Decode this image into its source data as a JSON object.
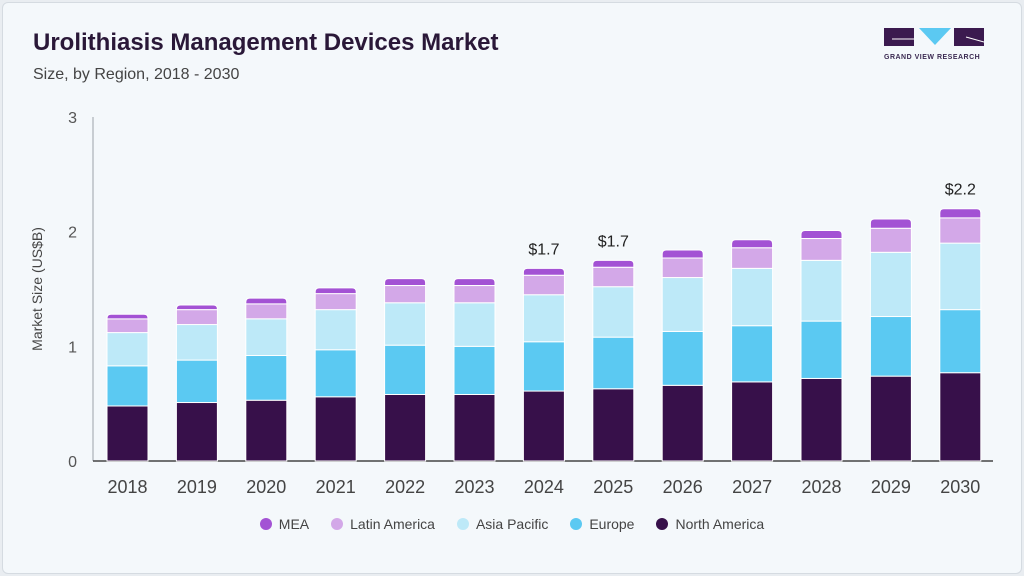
{
  "header": {
    "title": "Urolithiasis Management Devices Market",
    "subtitle": "Size, by Region, 2018 - 2030",
    "logo_text": "GRAND VIEW RESEARCH"
  },
  "chart_data": {
    "type": "bar",
    "stacked": true,
    "title": "Urolithiasis Management Devices Market",
    "subtitle": "Size, by Region, 2018 - 2030",
    "xlabel": "",
    "ylabel": "Market Size (US$B)",
    "ylim": [
      0,
      3
    ],
    "yticks": [
      "0",
      "1",
      "2",
      "3"
    ],
    "grid": false,
    "legend_position": "bottom",
    "categories": [
      "2018",
      "2019",
      "2020",
      "2021",
      "2022",
      "2023",
      "2024",
      "2025",
      "2026",
      "2027",
      "2028",
      "2029",
      "2030"
    ],
    "series": [
      {
        "name": "North America",
        "color": "#37104a",
        "values": [
          0.48,
          0.51,
          0.53,
          0.56,
          0.58,
          0.58,
          0.61,
          0.63,
          0.66,
          0.69,
          0.72,
          0.74,
          0.77
        ]
      },
      {
        "name": "Europe",
        "color": "#5bc9f2",
        "values": [
          0.35,
          0.37,
          0.39,
          0.41,
          0.43,
          0.42,
          0.43,
          0.45,
          0.47,
          0.49,
          0.5,
          0.52,
          0.55
        ]
      },
      {
        "name": "Asia Pacific",
        "color": "#bde9f8",
        "values": [
          0.29,
          0.31,
          0.32,
          0.35,
          0.37,
          0.38,
          0.41,
          0.44,
          0.47,
          0.5,
          0.53,
          0.56,
          0.58
        ]
      },
      {
        "name": "Latin America",
        "color": "#d3a8e8",
        "values": [
          0.12,
          0.13,
          0.13,
          0.14,
          0.15,
          0.15,
          0.17,
          0.17,
          0.17,
          0.18,
          0.19,
          0.21,
          0.22
        ]
      },
      {
        "name": "MEA",
        "color": "#a352d4",
        "values": [
          0.04,
          0.04,
          0.05,
          0.05,
          0.06,
          0.06,
          0.06,
          0.06,
          0.07,
          0.07,
          0.07,
          0.08,
          0.08
        ]
      }
    ],
    "annotations": [
      {
        "category": "2024",
        "text": "$1.7"
      },
      {
        "category": "2025",
        "text": "$1.7"
      },
      {
        "category": "2030",
        "text": "$2.2"
      }
    ]
  },
  "legend": [
    "MEA",
    "Latin America",
    "Asia Pacific",
    "Europe",
    "North America"
  ]
}
